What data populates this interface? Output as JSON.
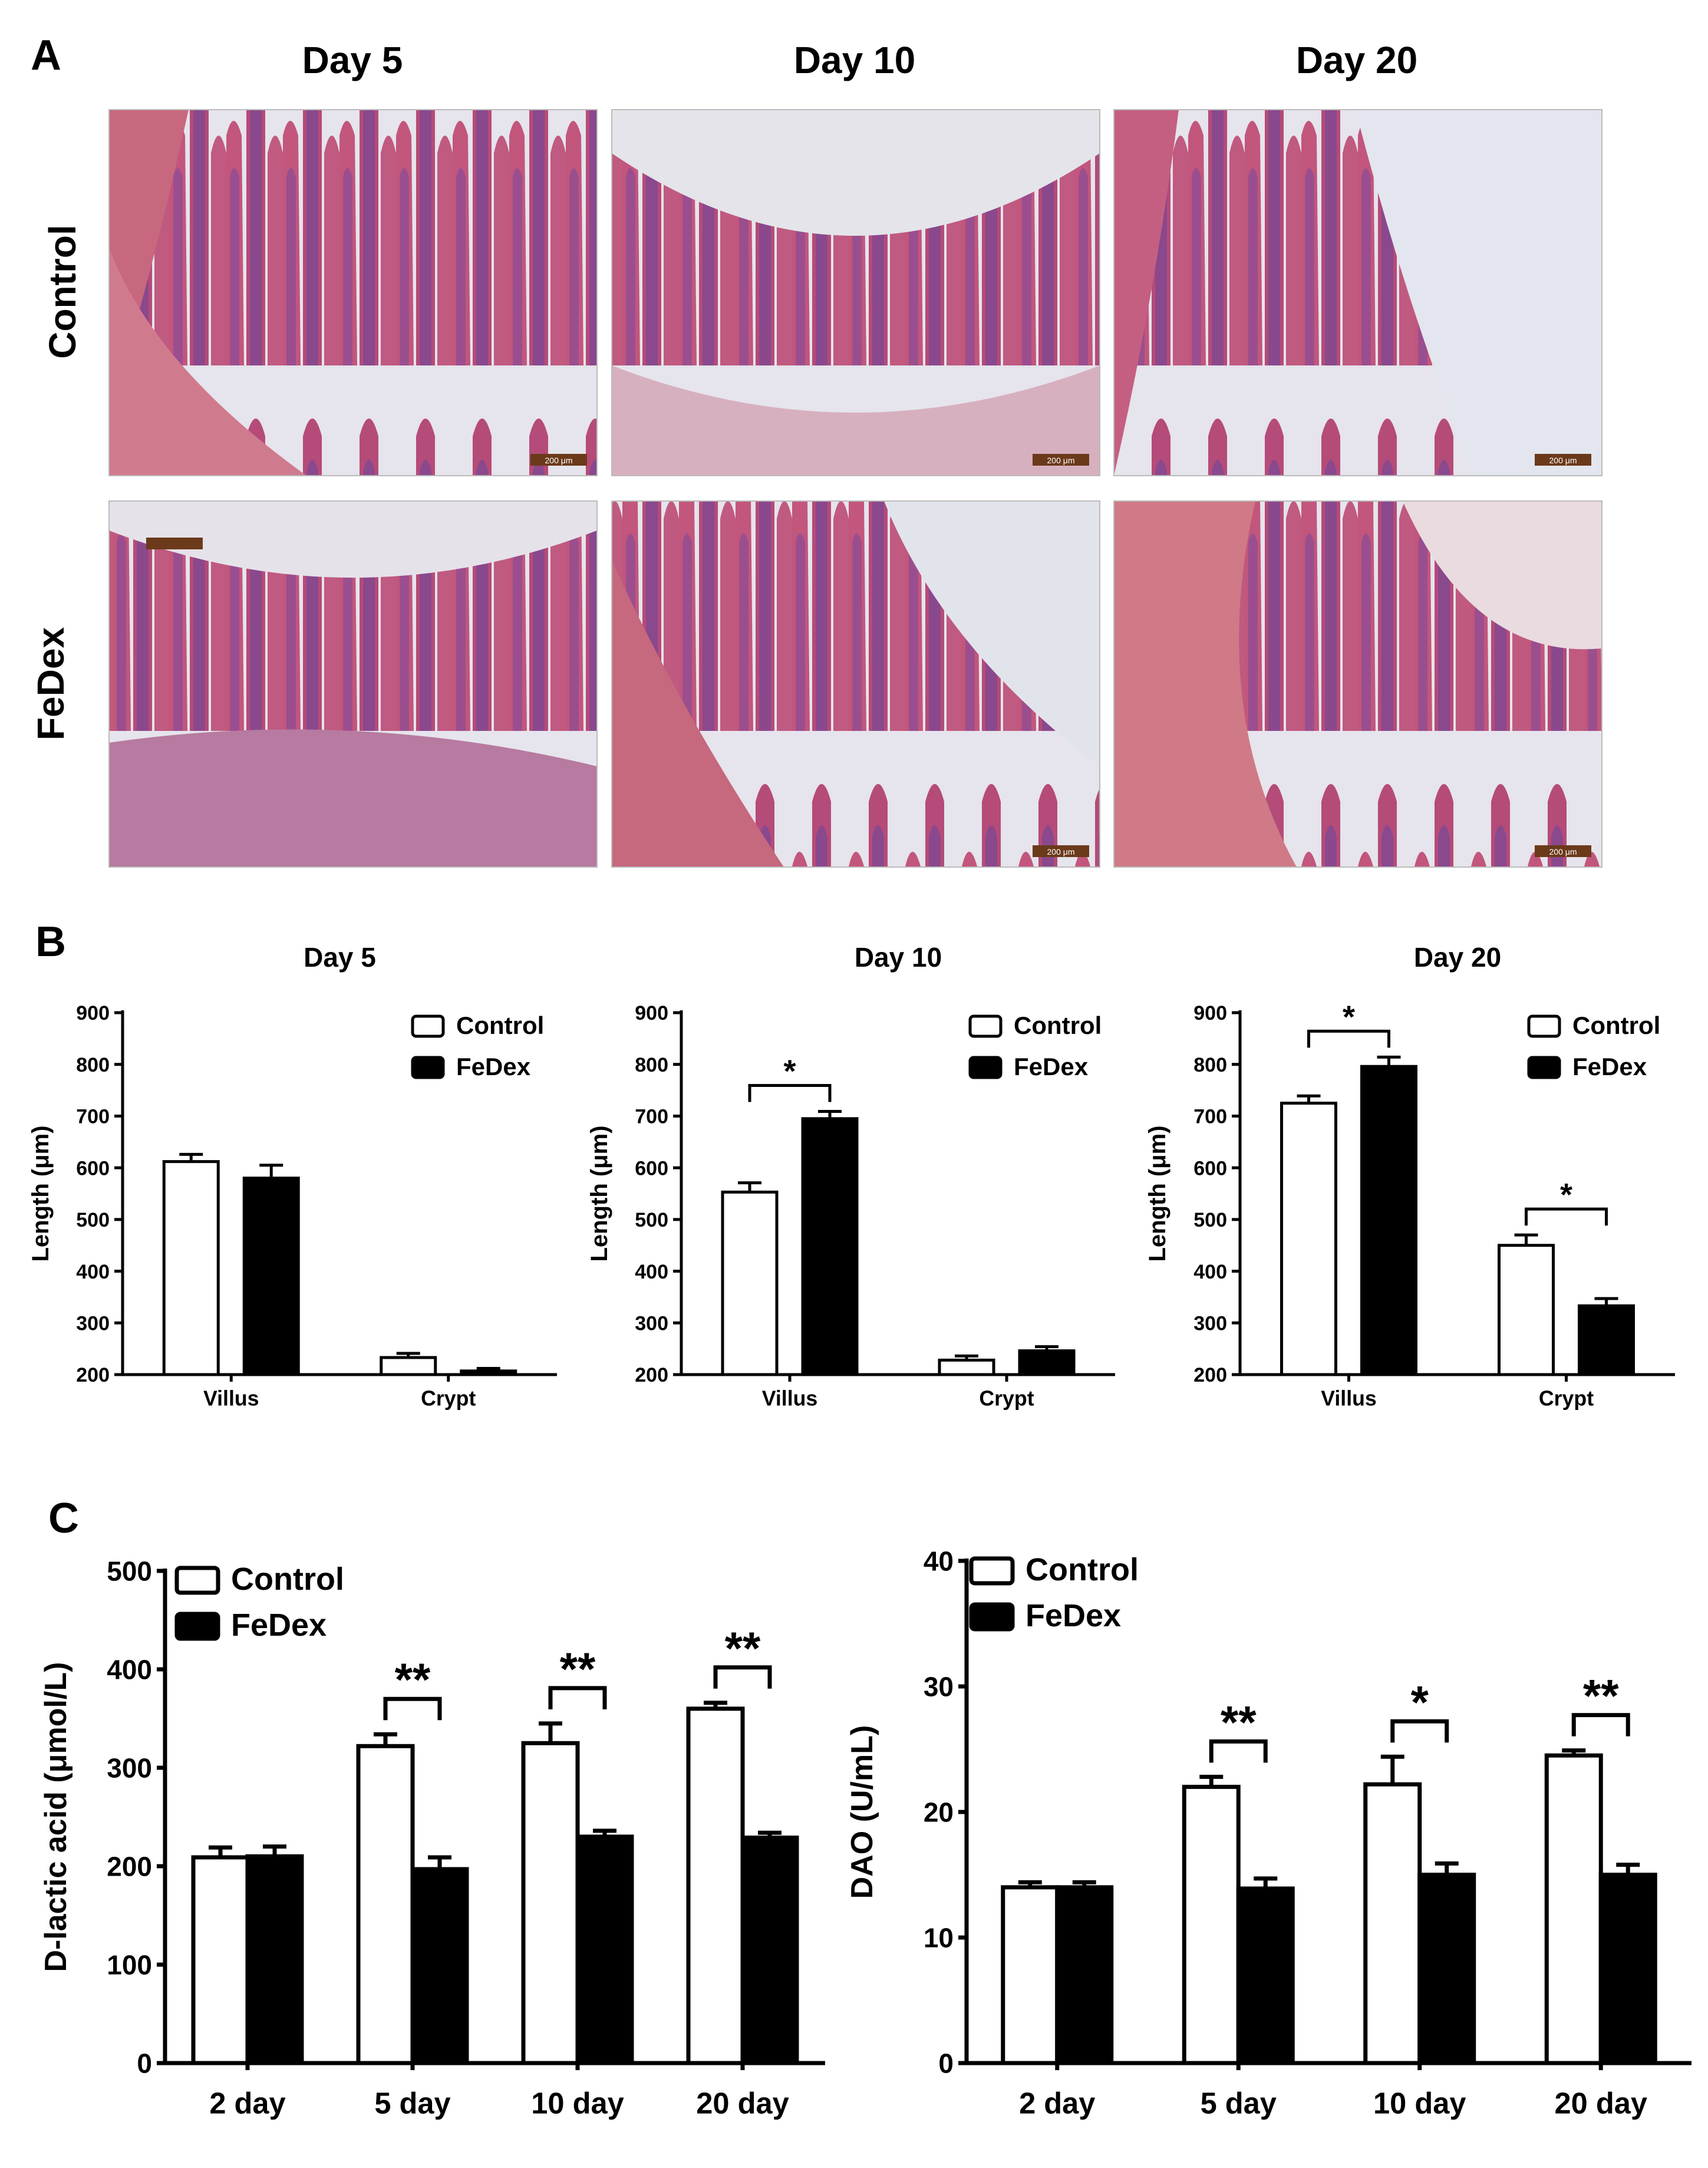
{
  "panel_a": {
    "letter": "A",
    "columns": [
      "Day 5",
      "Day 10",
      "Day 20"
    ],
    "rows": [
      "Control",
      "FeDex"
    ],
    "scale_bar_label": "200 μm",
    "image_type": "H&E-stained intestinal tissue micrograph",
    "colors": {
      "tissue_pink": "#c85a7a",
      "tissue_purple": "#6a3f8e",
      "lumen": "#e4e4ea"
    }
  },
  "chart_data": [
    {
      "panel": "B",
      "type": "bar",
      "title": "Day 5",
      "xlabel": "",
      "ylabel": "Length (μm)",
      "ylim": [
        200,
        900
      ],
      "yticks": [
        200,
        300,
        400,
        500,
        600,
        700,
        800,
        900
      ],
      "categories": [
        "Villus",
        "Crypt"
      ],
      "series": [
        {
          "name": "Control",
          "values": [
            612,
            233
          ],
          "errors": [
            14,
            8
          ],
          "fill": "#ffffff"
        },
        {
          "name": "FeDex",
          "values": [
            580,
            207
          ],
          "errors": [
            25,
            5
          ],
          "fill": "#000000"
        }
      ],
      "significance": [],
      "legend": "top-right"
    },
    {
      "type": "bar",
      "title": "Day 10",
      "xlabel": "",
      "ylabel": "Length (μm)",
      "ylim": [
        200,
        900
      ],
      "yticks": [
        200,
        300,
        400,
        500,
        600,
        700,
        800,
        900
      ],
      "categories": [
        "Villus",
        "Crypt"
      ],
      "series": [
        {
          "name": "Control",
          "values": [
            553,
            228
          ],
          "errors": [
            18,
            8
          ],
          "fill": "#ffffff"
        },
        {
          "name": "FeDex",
          "values": [
            695,
            246
          ],
          "errors": [
            14,
            8
          ],
          "fill": "#000000"
        }
      ],
      "significance": [
        {
          "category": 0,
          "label": "*"
        }
      ],
      "legend": "top-right"
    },
    {
      "type": "bar",
      "title": "Day 20",
      "xlabel": "",
      "ylabel": "Length (μm)",
      "ylim": [
        200,
        900
      ],
      "yticks": [
        200,
        300,
        400,
        500,
        600,
        700,
        800,
        900
      ],
      "categories": [
        "Villus",
        "Crypt"
      ],
      "series": [
        {
          "name": "Control",
          "values": [
            725,
            450
          ],
          "errors": [
            14,
            20
          ],
          "fill": "#ffffff"
        },
        {
          "name": "FeDex",
          "values": [
            796,
            333
          ],
          "errors": [
            18,
            14
          ],
          "fill": "#000000"
        }
      ],
      "significance": [
        {
          "category": 0,
          "label": "*"
        },
        {
          "category": 1,
          "label": "*"
        }
      ],
      "legend": "top-right"
    },
    {
      "panel": "C",
      "type": "bar",
      "title": "",
      "xlabel": "",
      "ylabel": "D-lactic acid (μmol/L)",
      "ylim": [
        0,
        500
      ],
      "yticks": [
        0,
        100,
        200,
        300,
        400,
        500
      ],
      "categories": [
        "2 day",
        "5 day",
        "10 day",
        "20 day"
      ],
      "series": [
        {
          "name": "Control",
          "values": [
            209,
            322,
            325,
            360
          ],
          "errors": [
            10,
            12,
            20,
            6
          ],
          "fill": "#ffffff"
        },
        {
          "name": "FeDex",
          "values": [
            210,
            197,
            230,
            229
          ],
          "errors": [
            10,
            12,
            6,
            5
          ],
          "fill": "#000000"
        }
      ],
      "significance": [
        {
          "category": 1,
          "label": "**"
        },
        {
          "category": 2,
          "label": "**"
        },
        {
          "category": 3,
          "label": "**"
        }
      ],
      "legend": "top-left"
    },
    {
      "type": "bar",
      "title": "",
      "xlabel": "",
      "ylabel": "DAO (U/mL)",
      "ylim": [
        0,
        40
      ],
      "yticks": [
        0,
        10,
        20,
        30,
        40
      ],
      "categories": [
        "2 day",
        "5 day",
        "10 day",
        "20 day"
      ],
      "series": [
        {
          "name": "Control",
          "values": [
            14.0,
            22.0,
            22.2,
            24.5
          ],
          "errors": [
            0.4,
            0.8,
            2.2,
            0.4
          ],
          "fill": "#ffffff"
        },
        {
          "name": "FeDex",
          "values": [
            14.0,
            13.9,
            15.0,
            15.0
          ],
          "errors": [
            0.4,
            0.8,
            0.9,
            0.8
          ],
          "fill": "#000000"
        }
      ],
      "significance": [
        {
          "category": 1,
          "label": "**"
        },
        {
          "category": 2,
          "label": "*"
        },
        {
          "category": 3,
          "label": "**"
        }
      ],
      "legend": "top-left"
    }
  ]
}
